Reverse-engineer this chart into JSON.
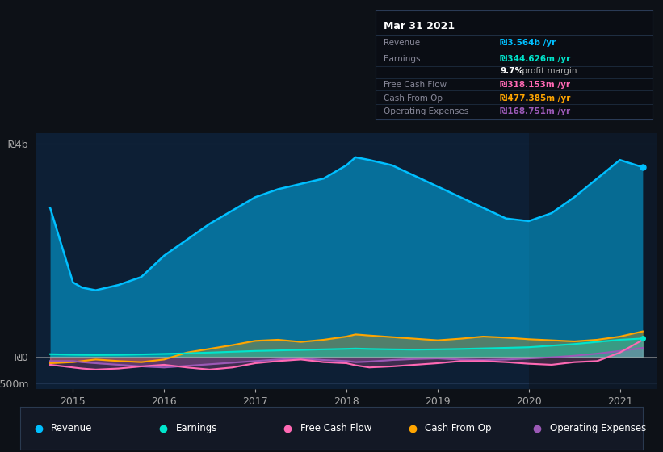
{
  "bg_color": "#0d1117",
  "plot_bg_color": "#0d1f35",
  "highlight_color": "#162030",
  "grid_color": "#2a4a6a",
  "title_date": "Mar 31 2021",
  "tooltip": {
    "Revenue": {
      "value": "₪3.564b /yr",
      "color": "#00bfff"
    },
    "Earnings": {
      "value": "₪344.626m /yr",
      "color": "#00e5cc"
    },
    "profit_margin": "9.7% profit margin",
    "Free Cash Flow": {
      "value": "₪318.153m /yr",
      "color": "#ff69b4"
    },
    "Cash From Op": {
      "value": "₪477.385m /yr",
      "color": "#ffa500"
    },
    "Operating Expenses": {
      "value": "₪168.751m /yr",
      "color": "#9b59b6"
    }
  },
  "x_years": [
    2014.75,
    2015.0,
    2015.1,
    2015.25,
    2015.5,
    2015.75,
    2016.0,
    2016.25,
    2016.5,
    2016.75,
    2017.0,
    2017.25,
    2017.5,
    2017.75,
    2018.0,
    2018.1,
    2018.25,
    2018.5,
    2018.75,
    2019.0,
    2019.25,
    2019.5,
    2019.75,
    2020.0,
    2020.25,
    2020.5,
    2020.75,
    2021.0,
    2021.25
  ],
  "revenue": [
    2800,
    1400,
    1300,
    1250,
    1350,
    1500,
    1900,
    2200,
    2500,
    2750,
    3000,
    3150,
    3250,
    3350,
    3600,
    3750,
    3700,
    3600,
    3400,
    3200,
    3000,
    2800,
    2600,
    2550,
    2700,
    3000,
    3350,
    3700,
    3564
  ],
  "earnings": [
    50,
    40,
    38,
    35,
    38,
    45,
    55,
    65,
    80,
    95,
    110,
    120,
    130,
    140,
    150,
    155,
    148,
    140,
    135,
    140,
    148,
    158,
    168,
    180,
    210,
    240,
    280,
    320,
    344
  ],
  "free_cash_flow": [
    -150,
    -200,
    -220,
    -240,
    -220,
    -180,
    -150,
    -200,
    -240,
    -200,
    -120,
    -80,
    -50,
    -100,
    -120,
    -160,
    -200,
    -180,
    -150,
    -120,
    -80,
    -80,
    -100,
    -130,
    -150,
    -100,
    -80,
    80,
    318
  ],
  "cash_from_op": [
    -120,
    -100,
    -80,
    -50,
    -80,
    -100,
    -50,
    80,
    150,
    220,
    300,
    320,
    280,
    320,
    380,
    420,
    400,
    370,
    340,
    310,
    340,
    380,
    360,
    330,
    310,
    290,
    320,
    380,
    477
  ],
  "operating_expenses": [
    -80,
    -80,
    -100,
    -120,
    -150,
    -180,
    -200,
    -170,
    -140,
    -110,
    -80,
    -50,
    -30,
    -60,
    -80,
    -100,
    -90,
    -60,
    -40,
    -30,
    -50,
    -60,
    -50,
    -30,
    -10,
    20,
    60,
    110,
    168
  ],
  "ylim": [
    -600,
    4200
  ],
  "yticks": [
    -500,
    0,
    4000
  ],
  "ytick_labels": [
    "-₪500m",
    "₪0",
    "₪4b"
  ],
  "xlim": [
    2014.6,
    2021.4
  ],
  "xticks": [
    2015,
    2016,
    2017,
    2018,
    2019,
    2020,
    2021
  ],
  "colors": {
    "revenue": "#00bfff",
    "earnings": "#00e5cc",
    "free_cash_flow": "#ff69b4",
    "cash_from_op": "#ffa500",
    "operating_expenses": "#9b59b6"
  },
  "legend_labels": [
    "Revenue",
    "Earnings",
    "Free Cash Flow",
    "Cash From Op",
    "Operating Expenses"
  ],
  "legend_colors": [
    "#00bfff",
    "#00e5cc",
    "#ff69b4",
    "#ffa500",
    "#9b59b6"
  ]
}
